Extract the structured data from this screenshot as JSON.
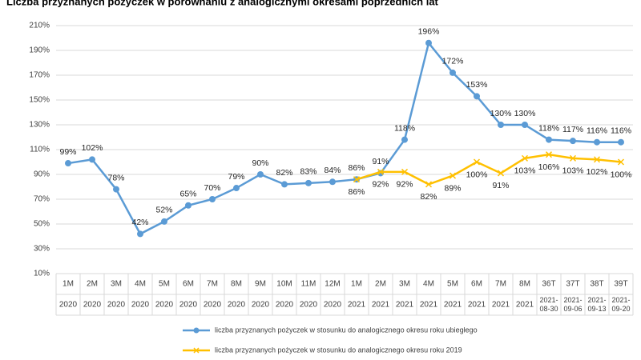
{
  "chart_data": {
    "type": "line",
    "title": "Liczba przyznanych pożyczek w porównaniu z analogicznymi okresami poprzednich lat",
    "categories": [
      "1M",
      "2M",
      "3M",
      "4M",
      "5M",
      "6M",
      "7M",
      "8M",
      "9M",
      "10M",
      "11M",
      "12M",
      "1M",
      "2M",
      "3M",
      "4M",
      "5M",
      "6M",
      "7M",
      "8M",
      "36T",
      "37T",
      "38T",
      "39T"
    ],
    "category_groups": [
      "2020",
      "2020",
      "2020",
      "2020",
      "2020",
      "2020",
      "2020",
      "2020",
      "2020",
      "2020",
      "2020",
      "2020",
      "2021",
      "2021",
      "2021",
      "2021",
      "2021",
      "2021",
      "2021",
      "2021",
      "2021-08-30",
      "2021-09-06",
      "2021-09-13",
      "2021-09-20"
    ],
    "series": [
      {
        "name": "liczba przyznanych pożyczek w stosunku do analogicznego okresu roku ubiegłego",
        "color": "#5b9bd5",
        "marker": "circle",
        "values": [
          99,
          102,
          78,
          42,
          52,
          65,
          70,
          79,
          90,
          82,
          83,
          84,
          86,
          91,
          118,
          196,
          172,
          153,
          130,
          130,
          118,
          117,
          116,
          116
        ],
        "value_labels": [
          "99%",
          "102%",
          "78%",
          "42%",
          "52%",
          "65%",
          "70%",
          "79%",
          "90%",
          "82%",
          "83%",
          "84%",
          "86%",
          "91%",
          "118%",
          "196%",
          "172%",
          "153%",
          "130%",
          "130%",
          "118%",
          "117%",
          "116%",
          "116%"
        ]
      },
      {
        "name": "liczba przyznanych pożyczek w stosunku do analogicznego okresu roku 2019",
        "color": "#ffc000",
        "marker": "x",
        "values": [
          null,
          null,
          null,
          null,
          null,
          null,
          null,
          null,
          null,
          null,
          null,
          null,
          86,
          92,
          92,
          82,
          89,
          100,
          91,
          103,
          106,
          103,
          102,
          100
        ],
        "value_labels": [
          null,
          null,
          null,
          null,
          null,
          null,
          null,
          null,
          null,
          null,
          null,
          null,
          "86%",
          "92%",
          "92%",
          "82%",
          "89%",
          "100%",
          "91%",
          "103%",
          "106%",
          "103%",
          "102%",
          "100%"
        ]
      }
    ],
    "ylim": [
      10,
      210
    ],
    "yticks": [
      {
        "value": 10,
        "label": "10%"
      },
      {
        "value": 30,
        "label": "30%"
      },
      {
        "value": 50,
        "label": "50%"
      },
      {
        "value": 70,
        "label": "70%"
      },
      {
        "value": 90,
        "label": "90%"
      },
      {
        "value": 110,
        "label": "110%"
      },
      {
        "value": 130,
        "label": "130%"
      },
      {
        "value": 150,
        "label": "150%"
      },
      {
        "value": 170,
        "label": "170%"
      },
      {
        "value": 190,
        "label": "190%"
      },
      {
        "value": 210,
        "label": "210%"
      }
    ],
    "grid": true,
    "legend": "bottom"
  }
}
